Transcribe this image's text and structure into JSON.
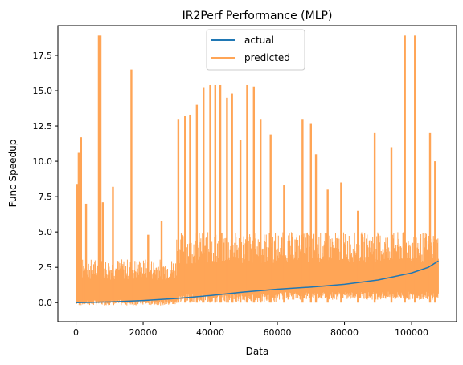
{
  "chart_data": {
    "type": "line",
    "title": "IR2Perf Performance (MLP)",
    "xlabel": "Data",
    "ylabel": "Func Speedup",
    "xlim": [
      -5400,
      113400
    ],
    "ylim": [
      -1.35,
      19.6
    ],
    "x_ticks": [
      0,
      20000,
      40000,
      60000,
      80000,
      100000
    ],
    "x_tick_labels": [
      "0",
      "20000",
      "40000",
      "60000",
      "80000",
      "100000"
    ],
    "y_ticks": [
      0.0,
      2.5,
      5.0,
      7.5,
      10.0,
      12.5,
      15.0,
      17.5
    ],
    "y_tick_labels": [
      "0.0",
      "2.5",
      "5.0",
      "7.5",
      "10.0",
      "12.5",
      "15.0",
      "17.5"
    ],
    "grid": false,
    "legend_position": "upper center",
    "series": [
      {
        "name": "actual",
        "color": "#1f77b4",
        "x": [
          0,
          10000,
          20000,
          30000,
          40000,
          50000,
          60000,
          70000,
          80000,
          90000,
          100000,
          105000,
          108000
        ],
        "y": [
          0.0,
          0.05,
          0.15,
          0.3,
          0.5,
          0.75,
          0.95,
          1.1,
          1.3,
          1.6,
          2.1,
          2.5,
          2.95
        ]
      },
      {
        "name": "predicted",
        "color": "#ffa556",
        "bands": [
          {
            "x": [
              0,
              30000
            ],
            "low": -0.2,
            "high": 3.1
          },
          {
            "x": [
              30000,
              60000
            ],
            "low": 0.0,
            "high": 5.0
          },
          {
            "x": [
              60000,
              108000
            ],
            "low": 0.2,
            "high": 5.0
          }
        ],
        "spikes": [
          {
            "x": 300,
            "y": 8.4
          },
          {
            "x": 800,
            "y": 10.6
          },
          {
            "x": 1500,
            "y": 11.7
          },
          {
            "x": 3000,
            "y": 7.0
          },
          {
            "x": 6800,
            "y": 18.9
          },
          {
            "x": 7300,
            "y": 18.9
          },
          {
            "x": 8000,
            "y": 7.1
          },
          {
            "x": 11000,
            "y": 8.2
          },
          {
            "x": 16500,
            "y": 16.5
          },
          {
            "x": 21500,
            "y": 4.8
          },
          {
            "x": 25500,
            "y": 5.8
          },
          {
            "x": 30500,
            "y": 13.0
          },
          {
            "x": 32500,
            "y": 13.2
          },
          {
            "x": 34000,
            "y": 13.3
          },
          {
            "x": 36000,
            "y": 14.0
          },
          {
            "x": 38000,
            "y": 15.2
          },
          {
            "x": 40000,
            "y": 15.4
          },
          {
            "x": 41500,
            "y": 15.4
          },
          {
            "x": 43000,
            "y": 15.4
          },
          {
            "x": 45000,
            "y": 14.5
          },
          {
            "x": 46500,
            "y": 14.8
          },
          {
            "x": 49000,
            "y": 11.5
          },
          {
            "x": 51000,
            "y": 15.4
          },
          {
            "x": 53000,
            "y": 15.3
          },
          {
            "x": 55000,
            "y": 13.0
          },
          {
            "x": 58000,
            "y": 11.9
          },
          {
            "x": 62000,
            "y": 8.3
          },
          {
            "x": 67500,
            "y": 13.0
          },
          {
            "x": 70000,
            "y": 12.7
          },
          {
            "x": 71500,
            "y": 10.5
          },
          {
            "x": 75000,
            "y": 8.0
          },
          {
            "x": 79000,
            "y": 8.5
          },
          {
            "x": 84000,
            "y": 6.5
          },
          {
            "x": 89000,
            "y": 12.0
          },
          {
            "x": 94000,
            "y": 11.0
          },
          {
            "x": 98000,
            "y": 18.9
          },
          {
            "x": 101000,
            "y": 18.9
          },
          {
            "x": 105500,
            "y": 12.0
          },
          {
            "x": 107000,
            "y": 10.0
          }
        ]
      }
    ]
  }
}
